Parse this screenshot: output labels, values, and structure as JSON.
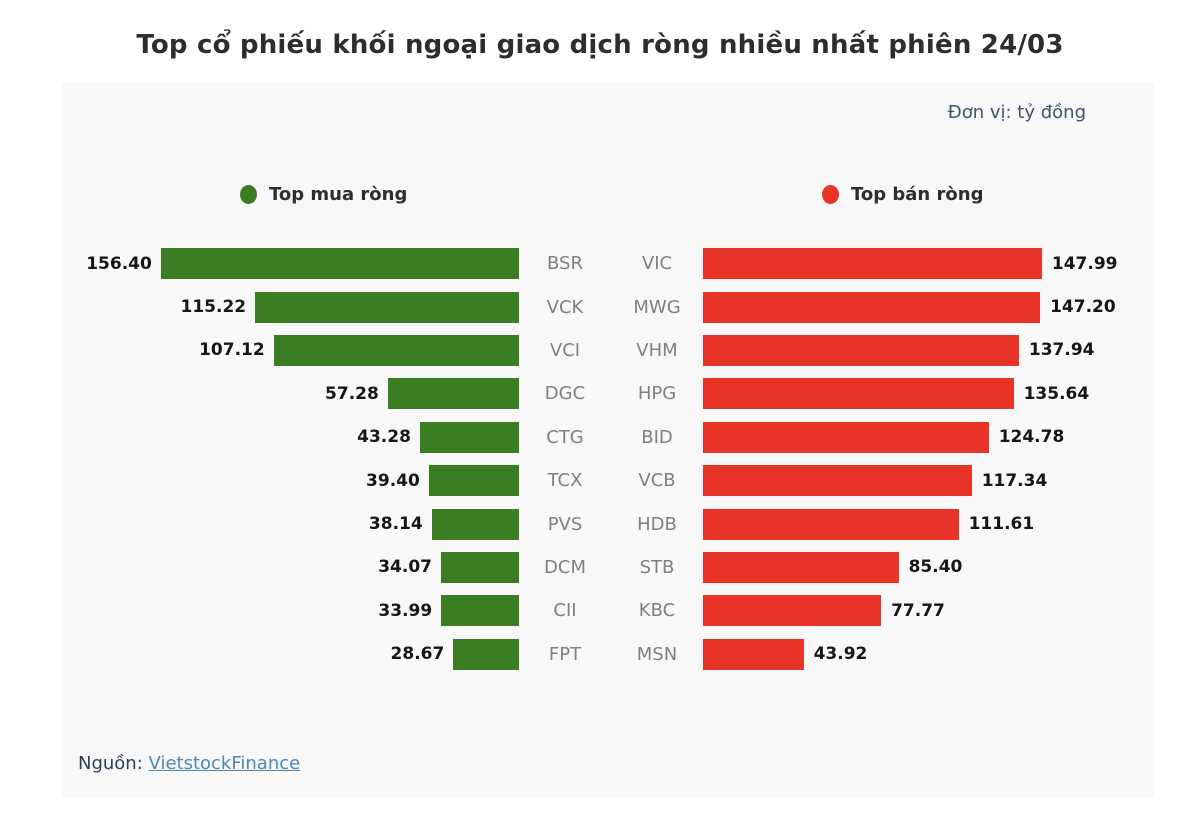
{
  "title": "Top cổ phiếu khối ngoại giao dịch ròng nhiều nhất phiên 24/03",
  "unit_label": "Đơn vị: tỷ đồng",
  "legend": {
    "buy": "Top mua ròng",
    "sell": "Top bán ròng"
  },
  "colors": {
    "buy": "#3a7d22",
    "sell": "#e93428",
    "panel_bg": "#f8f8f8",
    "link": "#4c86b4"
  },
  "source": {
    "prefix": "Nguồn:",
    "link_text": "VietstockFinance"
  },
  "chart_data": {
    "type": "bar",
    "orientation": "horizontal",
    "title": "Top cổ phiếu khối ngoại giao dịch ròng nhiều nhất phiên 24/03",
    "unit": "tỷ đồng",
    "xlim": [
      0,
      160
    ],
    "grid": false,
    "legend_position": "top",
    "value_labels": "outside-end, 2 decimals",
    "series": [
      {
        "name": "Top mua ròng",
        "color": "#3a7d22",
        "direction": "right-to-left",
        "points": [
          {
            "ticker": "BSR",
            "value": 156.4
          },
          {
            "ticker": "VCK",
            "value": 115.22
          },
          {
            "ticker": "VCI",
            "value": 107.12
          },
          {
            "ticker": "DGC",
            "value": 57.28
          },
          {
            "ticker": "CTG",
            "value": 43.28
          },
          {
            "ticker": "TCX",
            "value": 39.4
          },
          {
            "ticker": "PVS",
            "value": 38.14
          },
          {
            "ticker": "DCM",
            "value": 34.07
          },
          {
            "ticker": "CII",
            "value": 33.99
          },
          {
            "ticker": "FPT",
            "value": 28.67
          }
        ]
      },
      {
        "name": "Top bán ròng",
        "color": "#e93428",
        "direction": "left-to-right",
        "points": [
          {
            "ticker": "VIC",
            "value": 147.99
          },
          {
            "ticker": "MWG",
            "value": 147.2
          },
          {
            "ticker": "VHM",
            "value": 137.94
          },
          {
            "ticker": "HPG",
            "value": 135.64
          },
          {
            "ticker": "BID",
            "value": 124.78
          },
          {
            "ticker": "VCB",
            "value": 117.34
          },
          {
            "ticker": "HDB",
            "value": 111.61
          },
          {
            "ticker": "STB",
            "value": 85.4
          },
          {
            "ticker": "KBC",
            "value": 77.77
          },
          {
            "ticker": "MSN",
            "value": 43.92
          }
        ]
      }
    ]
  }
}
